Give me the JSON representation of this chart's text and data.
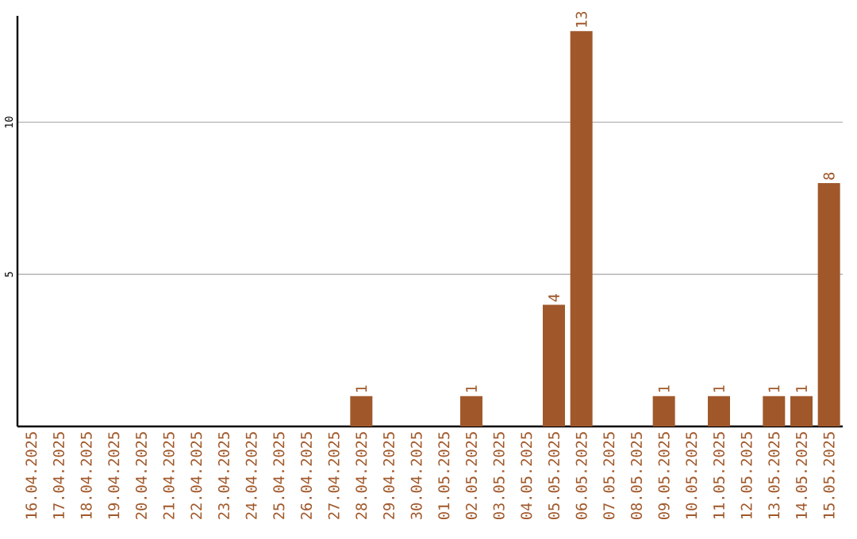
{
  "chart_data": {
    "type": "bar",
    "categories": [
      "16.04.2025",
      "17.04.2025",
      "18.04.2025",
      "19.04.2025",
      "20.04.2025",
      "21.04.2025",
      "22.04.2025",
      "23.04.2025",
      "24.04.2025",
      "25.04.2025",
      "26.04.2025",
      "27.04.2025",
      "28.04.2025",
      "29.04.2025",
      "30.04.2025",
      "01.05.2025",
      "02.05.2025",
      "03.05.2025",
      "04.05.2025",
      "05.05.2025",
      "06.05.2025",
      "07.05.2025",
      "08.05.2025",
      "09.05.2025",
      "10.05.2025",
      "11.05.2025",
      "12.05.2025",
      "13.05.2025",
      "14.05.2025",
      "15.05.2025"
    ],
    "values": [
      0,
      0,
      0,
      0,
      0,
      0,
      0,
      0,
      0,
      0,
      0,
      0,
      1,
      0,
      0,
      0,
      1,
      0,
      0,
      4,
      13,
      0,
      0,
      1,
      0,
      1,
      0,
      1,
      1,
      8
    ],
    "value_labels": [
      null,
      null,
      null,
      null,
      null,
      null,
      null,
      null,
      null,
      null,
      null,
      null,
      "1",
      null,
      null,
      null,
      "1",
      null,
      null,
      "4",
      "13",
      null,
      null,
      "1",
      null,
      "1",
      null,
      "1",
      "1",
      "8"
    ],
    "color": "#a0582a",
    "ylim": [
      0,
      13.5
    ],
    "yticks": [
      5,
      10
    ],
    "grid": "y"
  }
}
